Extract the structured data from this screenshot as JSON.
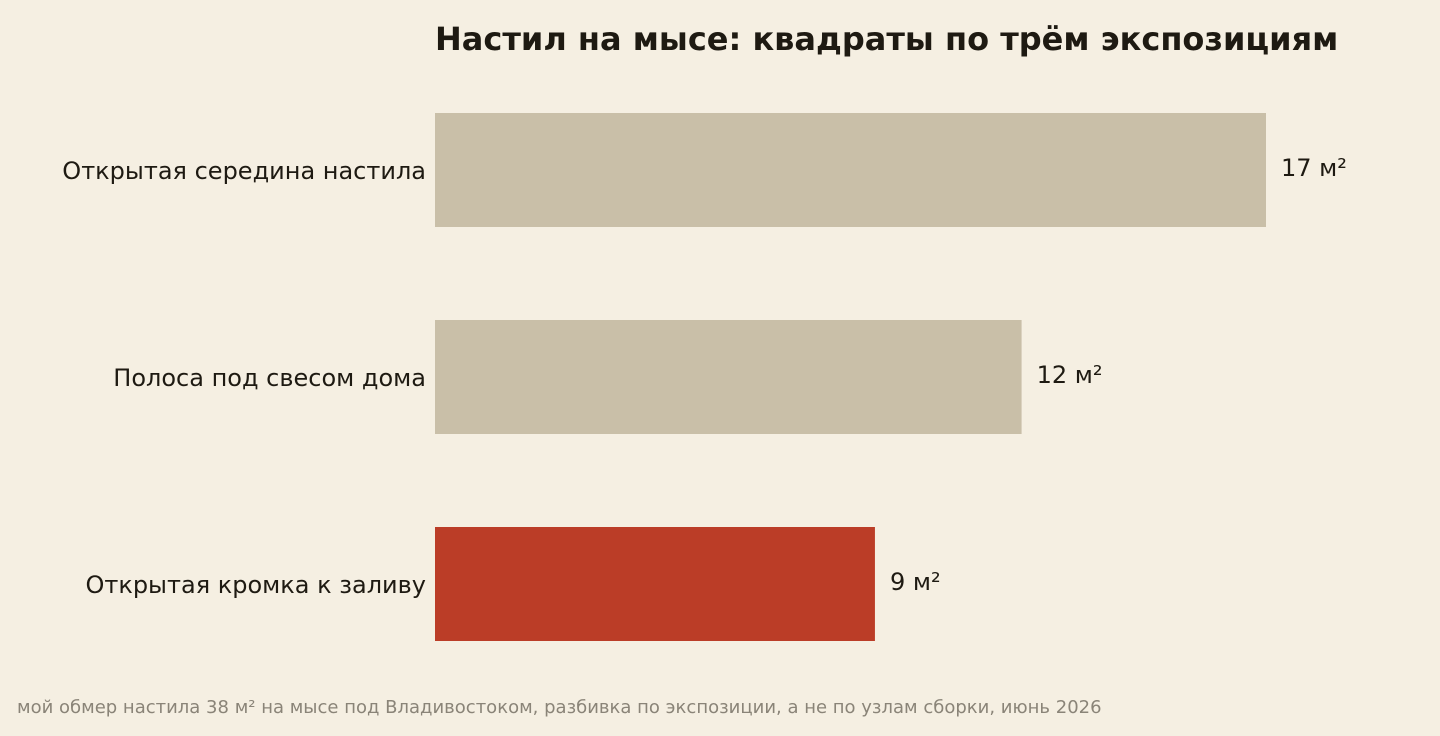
{
  "chart_data": {
    "type": "bar",
    "orientation": "horizontal",
    "title": "Настил на мысе: квадраты по трём экспозициям",
    "categories": [
      "Открытая середина настила",
      "Полоса под свесом дома",
      "Открытая кромка к заливу"
    ],
    "values": [
      17,
      12,
      9
    ],
    "value_labels": [
      "17 м²",
      "12 м²",
      "9 м²"
    ],
    "colors": [
      "#c9bfa8",
      "#c9bfa8",
      "#bb3d27"
    ],
    "caption": "мой обмер настила 38 м² на мысе под Владивостоком, разбивка по экспозиции, а не по узлам сборки, июнь 2026"
  }
}
